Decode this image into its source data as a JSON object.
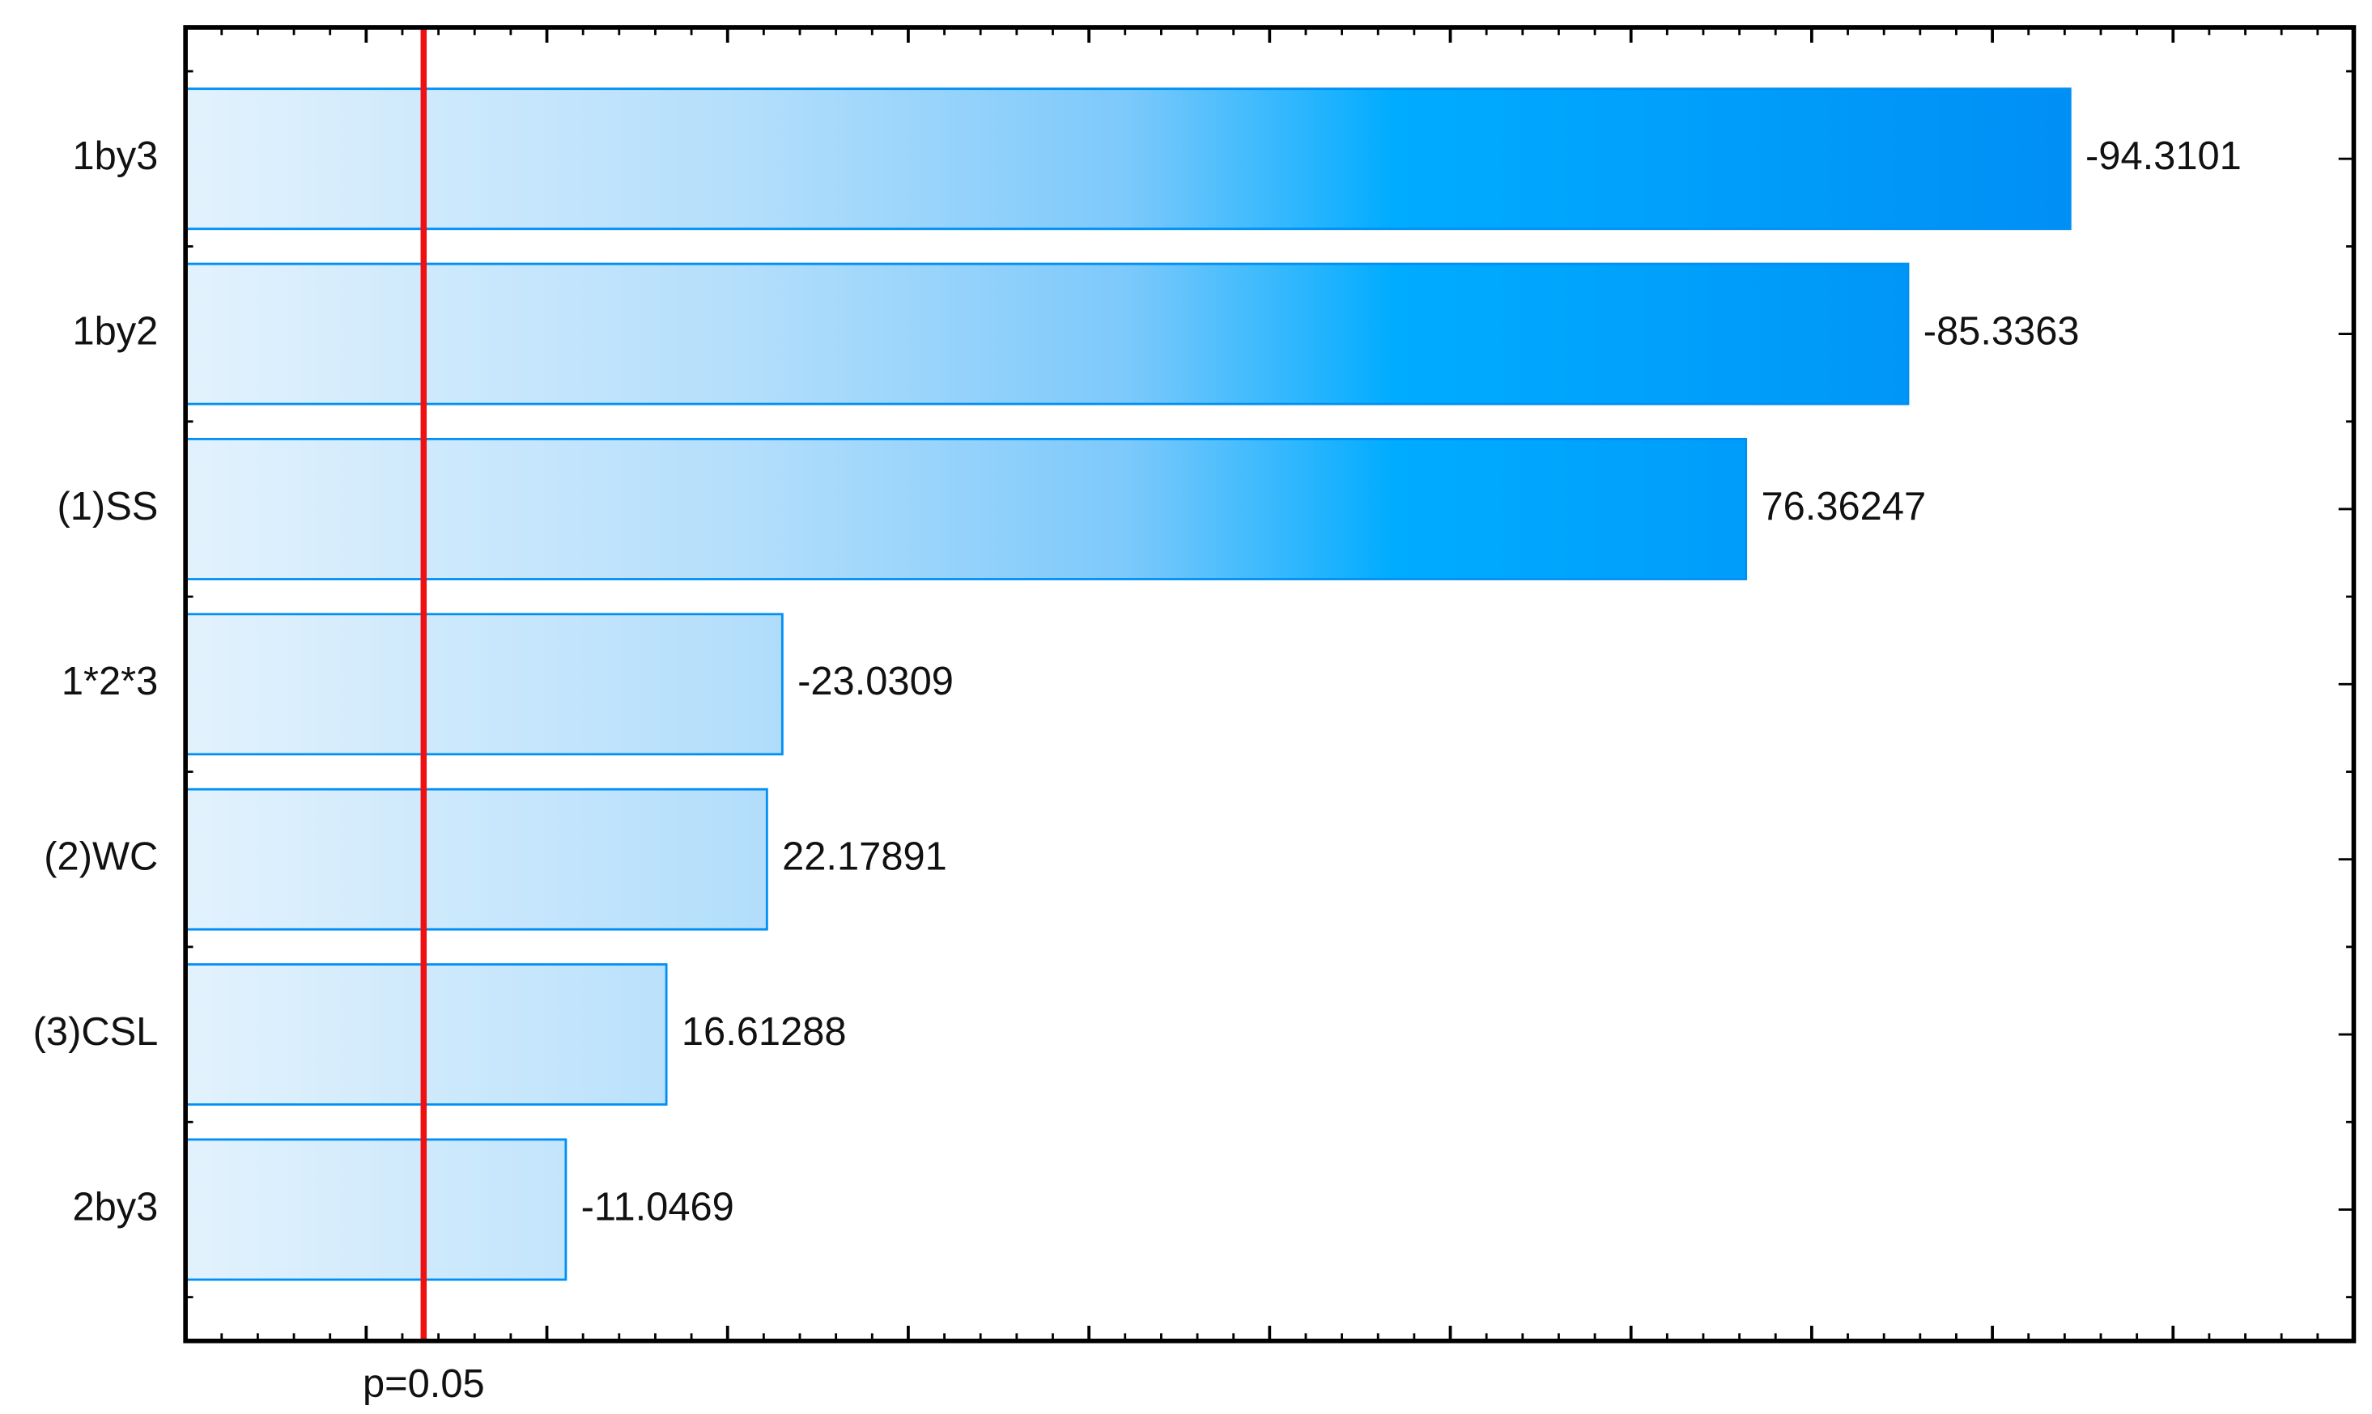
{
  "chart_data": {
    "type": "pareto",
    "categories": [
      "1by3",
      "1by2",
      "(1)SS",
      "1*2*3",
      "(2)WC",
      "(3)CSL",
      "2by3"
    ],
    "values": [
      -94.3101,
      -85.3363,
      76.36247,
      -23.0309,
      22.17891,
      16.61288,
      -11.0469
    ],
    "color": "#0090f5",
    "xlim": [
      -10,
      110
    ],
    "xticks": [
      0,
      10,
      20,
      30,
      40,
      50,
      60,
      70,
      80,
      90,
      100
    ],
    "reference_line": {
      "value": 3.18,
      "label": "p=0.05",
      "color": "#ee1111"
    }
  }
}
